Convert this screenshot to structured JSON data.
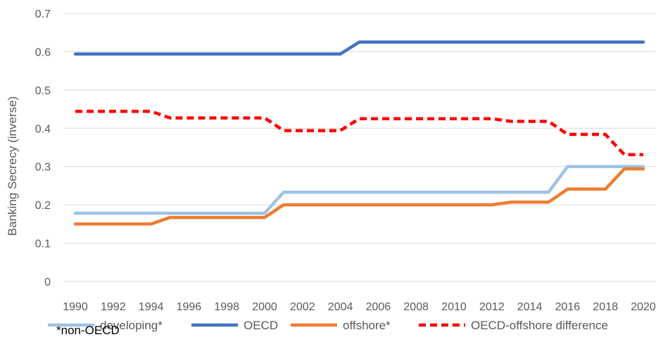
{
  "chart_data": {
    "type": "line",
    "title": "",
    "xlabel": "",
    "ylabel": "Banking Secrecy (inverse)",
    "ylim": [
      0,
      0.7
    ],
    "yticks": [
      0,
      0.1,
      0.2,
      0.3,
      0.4,
      0.5,
      0.6,
      0.7
    ],
    "ytick_labels": [
      "0",
      "0.1",
      "0.2",
      "0.3",
      "0.4",
      "0.5",
      "0.6",
      "0.7"
    ],
    "x": [
      1990,
      1991,
      1992,
      1993,
      1994,
      1995,
      1996,
      1997,
      1998,
      1999,
      2000,
      2001,
      2002,
      2003,
      2004,
      2005,
      2006,
      2007,
      2008,
      2009,
      2010,
      2011,
      2012,
      2013,
      2014,
      2015,
      2016,
      2017,
      2018,
      2019,
      2020
    ],
    "xtick_labels": [
      "1990",
      "1992",
      "1994",
      "1996",
      "1998",
      "2000",
      "2002",
      "2004",
      "2006",
      "2008",
      "2010",
      "2012",
      "2014",
      "2016",
      "2018",
      "2020"
    ],
    "grid": "horizontal",
    "legend_position": "bottom",
    "series": [
      {
        "name": "developing*",
        "color": "#9dc3e6",
        "dash": "solid",
        "values": [
          0.178,
          0.178,
          0.178,
          0.178,
          0.178,
          0.178,
          0.178,
          0.178,
          0.178,
          0.178,
          0.178,
          0.233,
          0.233,
          0.233,
          0.233,
          0.233,
          0.233,
          0.233,
          0.233,
          0.233,
          0.233,
          0.233,
          0.233,
          0.233,
          0.233,
          0.233,
          0.3,
          0.3,
          0.3,
          0.3,
          0.3
        ]
      },
      {
        "name": "OECD",
        "color": "#4472c4",
        "dash": "solid",
        "values": [
          0.594,
          0.594,
          0.594,
          0.594,
          0.594,
          0.594,
          0.594,
          0.594,
          0.594,
          0.594,
          0.594,
          0.594,
          0.594,
          0.594,
          0.594,
          0.625,
          0.625,
          0.625,
          0.625,
          0.625,
          0.625,
          0.625,
          0.625,
          0.625,
          0.625,
          0.625,
          0.625,
          0.625,
          0.625,
          0.625,
          0.625
        ]
      },
      {
        "name": "offshore*",
        "color": "#ed7d31",
        "dash": "solid",
        "values": [
          0.15,
          0.15,
          0.15,
          0.15,
          0.15,
          0.167,
          0.167,
          0.167,
          0.167,
          0.167,
          0.167,
          0.2,
          0.2,
          0.2,
          0.2,
          0.2,
          0.2,
          0.2,
          0.2,
          0.2,
          0.2,
          0.2,
          0.2,
          0.207,
          0.207,
          0.207,
          0.241,
          0.241,
          0.241,
          0.294,
          0.294
        ]
      },
      {
        "name": "OECD-offshore difference",
        "color": "#ff0000",
        "dash": "dashed",
        "values": [
          0.444,
          0.444,
          0.444,
          0.444,
          0.444,
          0.427,
          0.427,
          0.427,
          0.427,
          0.427,
          0.427,
          0.394,
          0.394,
          0.394,
          0.394,
          0.425,
          0.425,
          0.425,
          0.425,
          0.425,
          0.425,
          0.425,
          0.425,
          0.418,
          0.418,
          0.418,
          0.384,
          0.384,
          0.384,
          0.331,
          0.331
        ]
      }
    ]
  },
  "footnote": "*non-OECD"
}
